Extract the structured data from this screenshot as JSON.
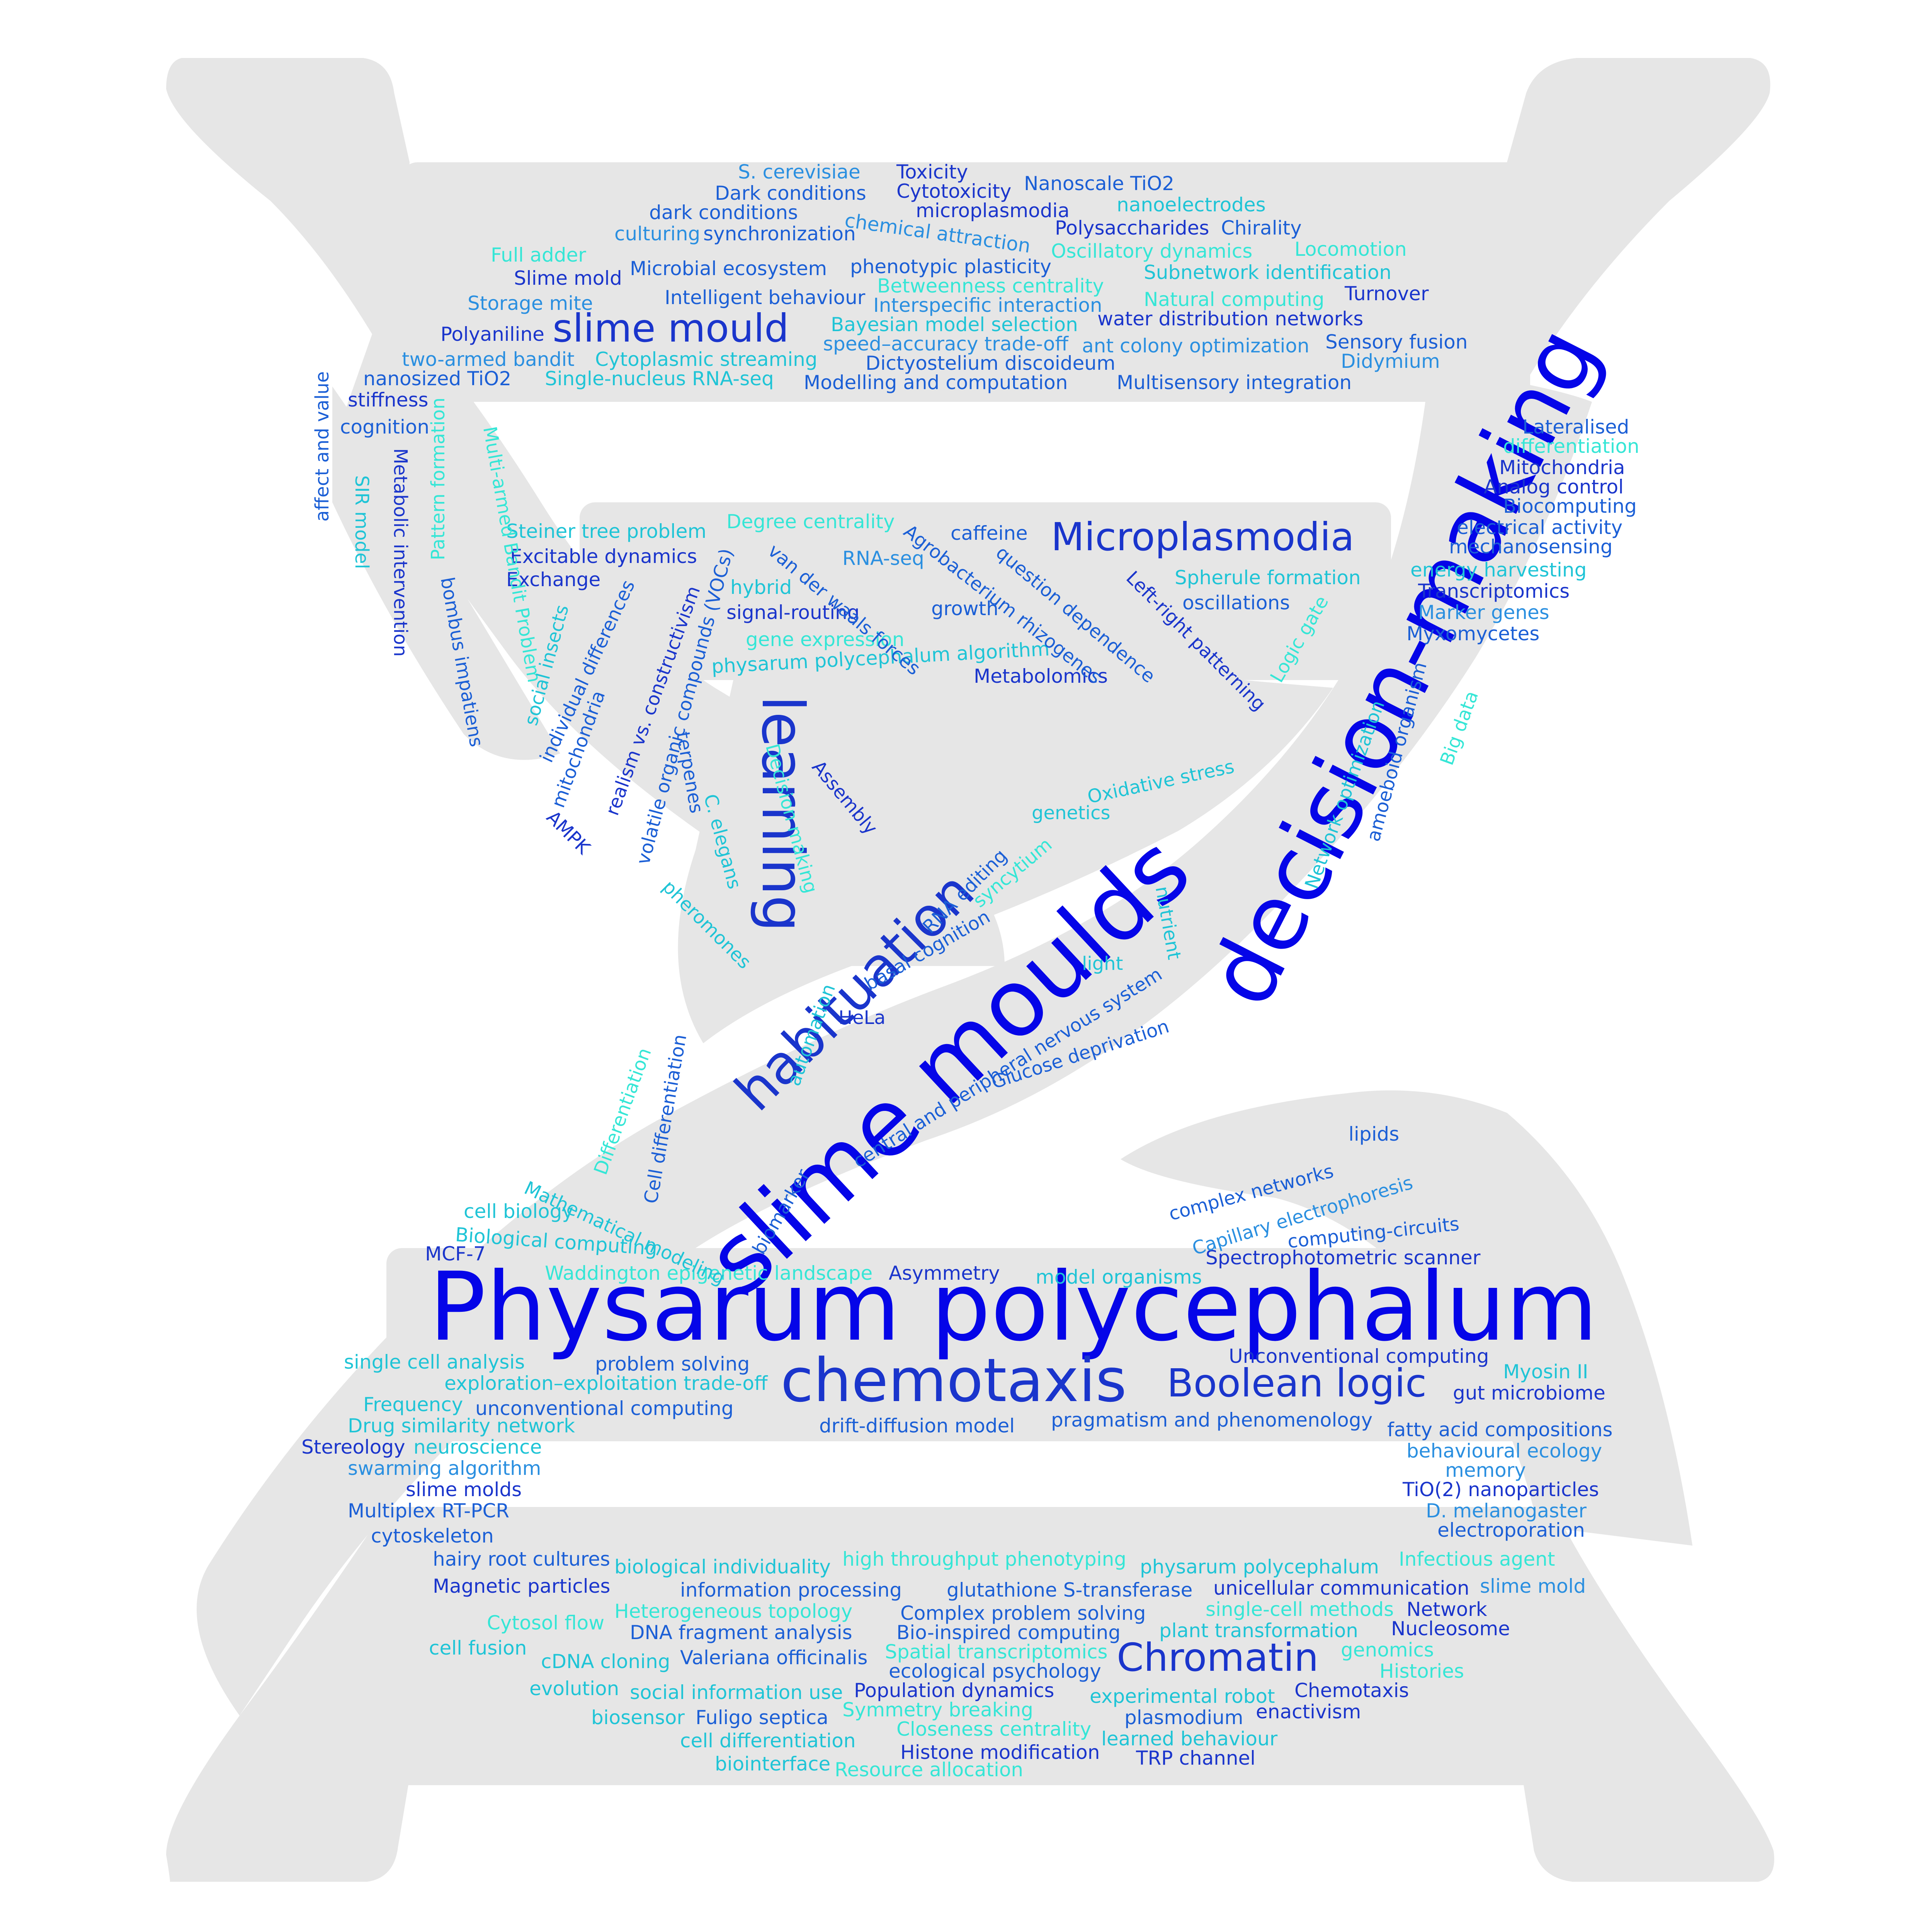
{
  "colors": {
    "background": "#ffffff",
    "helix": "#e6e6e6",
    "palette": [
      "#0505e8",
      "#1a35cc",
      "#1b5fd6",
      "#2a8fe0",
      "#1fc4d6",
      "#35e6d6"
    ]
  },
  "words": [
    {
      "t": "Physarum polycephalum",
      "c": "#0505e8"
    },
    {
      "t": "slime moulds",
      "c": "#0505e8"
    },
    {
      "t": "decision-making",
      "c": "#0505e8"
    },
    {
      "t": "chemotaxis",
      "c": "#1a35cc"
    },
    {
      "t": "learning",
      "c": "#1a35cc"
    },
    {
      "t": "habituation",
      "c": "#1a35cc"
    },
    {
      "t": "slime mould",
      "c": "#1a35cc"
    },
    {
      "t": "Microplasmodia",
      "c": "#1a35cc"
    },
    {
      "t": "Boolean logic",
      "c": "#1a35cc"
    },
    {
      "t": "Chromatin",
      "c": "#1a35cc"
    },
    {
      "t": "S. cerevisiae",
      "c": "#2a8fe0"
    },
    {
      "t": "Toxicity",
      "c": "#1a35cc"
    },
    {
      "t": "Dark conditions",
      "c": "#1b5fd6"
    },
    {
      "t": "Cytotoxicity",
      "c": "#1a35cc"
    },
    {
      "t": "Nanoscale TiO2",
      "c": "#1b5fd6"
    },
    {
      "t": "dark conditions",
      "c": "#1b5fd6"
    },
    {
      "t": "microplasmodia",
      "c": "#1a35cc"
    },
    {
      "t": "nanoelectrodes",
      "c": "#1fc4d6"
    },
    {
      "t": "culturing",
      "c": "#2a8fe0"
    },
    {
      "t": "synchronization",
      "c": "#1b5fd6"
    },
    {
      "t": "chemical attraction",
      "c": "#2a8fe0"
    },
    {
      "t": "Polysaccharides",
      "c": "#1a35cc"
    },
    {
      "t": "Chirality",
      "c": "#1b5fd6"
    },
    {
      "t": "Full adder",
      "c": "#35e6d6"
    },
    {
      "t": "Oscillatory dynamics",
      "c": "#35e6d6"
    },
    {
      "t": "Locomotion",
      "c": "#35e6d6"
    },
    {
      "t": "Slime mold",
      "c": "#1a35cc"
    },
    {
      "t": "Microbial ecosystem",
      "c": "#1b5fd6"
    },
    {
      "t": "phenotypic plasticity",
      "c": "#1b5fd6"
    },
    {
      "t": "Subnetwork identification",
      "c": "#1fc4d6"
    },
    {
      "t": "Betweenness centrality",
      "c": "#35e6d6"
    },
    {
      "t": "Storage mite",
      "c": "#2a8fe0"
    },
    {
      "t": "Intelligent behaviour",
      "c": "#1b5fd6"
    },
    {
      "t": "Interspecific interaction",
      "c": "#2a8fe0"
    },
    {
      "t": "Natural computing",
      "c": "#35e6d6"
    },
    {
      "t": "Turnover",
      "c": "#1a35cc"
    },
    {
      "t": "Bayesian model selection",
      "c": "#1fc4d6"
    },
    {
      "t": "water distribution networks",
      "c": "#1a35cc"
    },
    {
      "t": "Polyaniline",
      "c": "#1a35cc"
    },
    {
      "t": "speed–accuracy trade-off",
      "c": "#2a8fe0"
    },
    {
      "t": "ant colony optimization",
      "c": "#2a8fe0"
    },
    {
      "t": "Sensory fusion",
      "c": "#1b5fd6"
    },
    {
      "t": "two-armed bandit",
      "c": "#2a8fe0"
    },
    {
      "t": "Cytoplasmic streaming",
      "c": "#1fc4d6"
    },
    {
      "t": "Dictyostelium discoideum",
      "c": "#1b5fd6"
    },
    {
      "t": "Didymium",
      "c": "#2a8fe0"
    },
    {
      "t": "nanosized TiO2",
      "c": "#1b5fd6"
    },
    {
      "t": "Single-nucleus RNA-seq",
      "c": "#1fc4d6"
    },
    {
      "t": "Modelling and computation",
      "c": "#1b5fd6"
    },
    {
      "t": "Multisensory integration",
      "c": "#1b5fd6"
    },
    {
      "t": "stiffness",
      "c": "#1a35cc"
    },
    {
      "t": "cognition",
      "c": "#1b5fd6"
    },
    {
      "t": "Lateralised",
      "c": "#1b5fd6"
    },
    {
      "t": "differentiation",
      "c": "#35e6d6"
    },
    {
      "t": "Mitochondria",
      "c": "#1a35cc"
    },
    {
      "t": "Analog control",
      "c": "#1a35cc"
    },
    {
      "t": "Biocomputing",
      "c": "#1b5fd6"
    },
    {
      "t": "electrical activity",
      "c": "#1b5fd6"
    },
    {
      "t": "mechanosensing",
      "c": "#1b5fd6"
    },
    {
      "t": "energy harvesting",
      "c": "#1fc4d6"
    },
    {
      "t": "Transcriptomics",
      "c": "#1a35cc"
    },
    {
      "t": "Marker genes",
      "c": "#2a8fe0"
    },
    {
      "t": "Myxomycetes",
      "c": "#1b5fd6"
    },
    {
      "t": "Spherule formation",
      "c": "#1fc4d6"
    },
    {
      "t": "oscillations",
      "c": "#1b5fd6"
    },
    {
      "t": "Steiner tree problem",
      "c": "#1fc4d6"
    },
    {
      "t": "Degree centrality",
      "c": "#35e6d6"
    },
    {
      "t": "caffeine",
      "c": "#1b5fd6"
    },
    {
      "t": "Excitable dynamics",
      "c": "#1a35cc"
    },
    {
      "t": "RNA-seq",
      "c": "#2a8fe0"
    },
    {
      "t": "Exchange",
      "c": "#1a35cc"
    },
    {
      "t": "hybrid",
      "c": "#1fc4d6"
    },
    {
      "t": "signal-routing",
      "c": "#1a35cc"
    },
    {
      "t": "growth",
      "c": "#1b5fd6"
    },
    {
      "t": "gene expression",
      "c": "#35e6d6"
    },
    {
      "t": "physarum polycephalum algorithm",
      "c": "#1fc4d6"
    },
    {
      "t": "Metabolomics",
      "c": "#1a35cc"
    },
    {
      "t": "MCF-7",
      "c": "#1a35cc"
    },
    {
      "t": "cell biology",
      "c": "#1fc4d6"
    },
    {
      "t": "Biological computing",
      "c": "#1fc4d6"
    },
    {
      "t": "Waddington epigenetic landscape",
      "c": "#35e6d6"
    },
    {
      "t": "Asymmetry",
      "c": "#1a35cc"
    },
    {
      "t": "model organisms",
      "c": "#1fc4d6"
    },
    {
      "t": "Spectrophotometric scanner",
      "c": "#1a35cc"
    },
    {
      "t": "lipids",
      "c": "#1b5fd6"
    },
    {
      "t": "single cell analysis",
      "c": "#1fc4d6"
    },
    {
      "t": "problem solving",
      "c": "#1b5fd6"
    },
    {
      "t": "Unconventional computing",
      "c": "#1a35cc"
    },
    {
      "t": "exploration–exploitation trade-off",
      "c": "#1fc4d6"
    },
    {
      "t": "Myosin II",
      "c": "#1fc4d6"
    },
    {
      "t": "Frequency",
      "c": "#1fc4d6"
    },
    {
      "t": "unconventional computing",
      "c": "#1b5fd6"
    },
    {
      "t": "gut microbiome",
      "c": "#1a35cc"
    },
    {
      "t": "Drug similarity network",
      "c": "#1fc4d6"
    },
    {
      "t": "drift-diffusion model",
      "c": "#1b5fd6"
    },
    {
      "t": "pragmatism and phenomenology",
      "c": "#1b5fd6"
    },
    {
      "t": "fatty acid compositions",
      "c": "#1b5fd6"
    },
    {
      "t": "Stereology",
      "c": "#1a35cc"
    },
    {
      "t": "neuroscience",
      "c": "#1fc4d6"
    },
    {
      "t": "behavioural ecology",
      "c": "#2a8fe0"
    },
    {
      "t": "swarming algorithm",
      "c": "#2a8fe0"
    },
    {
      "t": "memory",
      "c": "#2a8fe0"
    },
    {
      "t": "slime molds",
      "c": "#1a35cc"
    },
    {
      "t": "TiO(2) nanoparticles",
      "c": "#1a35cc"
    },
    {
      "t": "Multiplex RT-PCR",
      "c": "#1b5fd6"
    },
    {
      "t": "D. melanogaster",
      "c": "#2a8fe0"
    },
    {
      "t": "electroporation",
      "c": "#1b5fd6"
    },
    {
      "t": "cytoskeleton",
      "c": "#1b5fd6"
    },
    {
      "t": "hairy root cultures",
      "c": "#1b5fd6"
    },
    {
      "t": "biological individuality",
      "c": "#1fc4d6"
    },
    {
      "t": "high throughput phenotyping",
      "c": "#35e6d6"
    },
    {
      "t": "physarum polycephalum",
      "c": "#1fc4d6"
    },
    {
      "t": "Infectious agent",
      "c": "#35e6d6"
    },
    {
      "t": "Magnetic particles",
      "c": "#1a35cc"
    },
    {
      "t": "information processing",
      "c": "#1b5fd6"
    },
    {
      "t": "glutathione S-transferase",
      "c": "#1b5fd6"
    },
    {
      "t": "unicellular communication",
      "c": "#1a35cc"
    },
    {
      "t": "slime mold",
      "c": "#2a8fe0"
    },
    {
      "t": "Heterogeneous topology",
      "c": "#35e6d6"
    },
    {
      "t": "Complex problem solving",
      "c": "#1b5fd6"
    },
    {
      "t": "single-cell methods",
      "c": "#35e6d6"
    },
    {
      "t": "Network",
      "c": "#1a35cc"
    },
    {
      "t": "Cytosol flow",
      "c": "#35e6d6"
    },
    {
      "t": "DNA fragment analysis",
      "c": "#1b5fd6"
    },
    {
      "t": "Bio-inspired computing",
      "c": "#1b5fd6"
    },
    {
      "t": "plant transformation",
      "c": "#1fc4d6"
    },
    {
      "t": "Nucleosome",
      "c": "#1a35cc"
    },
    {
      "t": "cell fusion",
      "c": "#1fc4d6"
    },
    {
      "t": "cDNA cloning",
      "c": "#1fc4d6"
    },
    {
      "t": "Valeriana officinalis",
      "c": "#1b5fd6"
    },
    {
      "t": "Spatial transcriptomics",
      "c": "#35e6d6"
    },
    {
      "t": "genomics",
      "c": "#35e6d6"
    },
    {
      "t": "ecological psychology",
      "c": "#1b5fd6"
    },
    {
      "t": "Histories",
      "c": "#35e6d6"
    },
    {
      "t": "evolution",
      "c": "#1fc4d6"
    },
    {
      "t": "social information use",
      "c": "#1fc4d6"
    },
    {
      "t": "Population dynamics",
      "c": "#1a35cc"
    },
    {
      "t": "experimental robot",
      "c": "#1fc4d6"
    },
    {
      "t": "Chemotaxis",
      "c": "#1a35cc"
    },
    {
      "t": "biosensor",
      "c": "#1fc4d6"
    },
    {
      "t": "Fuligo septica",
      "c": "#1b5fd6"
    },
    {
      "t": "Symmetry breaking",
      "c": "#35e6d6"
    },
    {
      "t": "plasmodium",
      "c": "#1b5fd6"
    },
    {
      "t": "enactivism",
      "c": "#1a35cc"
    },
    {
      "t": "Closeness centrality",
      "c": "#35e6d6"
    },
    {
      "t": "learned behaviour",
      "c": "#1fc4d6"
    },
    {
      "t": "cell differentiation",
      "c": "#1fc4d6"
    },
    {
      "t": "Histone modification",
      "c": "#1a35cc"
    },
    {
      "t": "TRP channel",
      "c": "#1a35cc"
    },
    {
      "t": "biointerface",
      "c": "#1fc4d6"
    },
    {
      "t": "Resource allocation",
      "c": "#35e6d6"
    },
    {
      "t": "affect and value",
      "c": "#1b5fd6"
    },
    {
      "t": "SIR model",
      "c": "#1fc4d6"
    },
    {
      "t": "Metabolic intervention",
      "c": "#1a35cc"
    },
    {
      "t": "Pattern formation",
      "c": "#35e6d6"
    },
    {
      "t": "Multi-armed Bandit Problem",
      "c": "#35e6d6"
    },
    {
      "t": "bombus impatiens",
      "c": "#1b5fd6"
    },
    {
      "t": "social insects",
      "c": "#1fc4d6"
    },
    {
      "t": "individual differences",
      "c": "#1b5fd6"
    },
    {
      "t": "mitochondria",
      "c": "#1b5fd6"
    },
    {
      "t": "realism vs. constructivism",
      "c": "#1a35cc"
    },
    {
      "t": "AMPK",
      "c": "#1a35cc"
    },
    {
      "t": "volatile organic compounds (VOCs)",
      "c": "#1b5fd6"
    },
    {
      "t": "terpenes",
      "c": "#1b5fd6"
    },
    {
      "t": "C. elegans",
      "c": "#1fc4d6"
    },
    {
      "t": "Decision making",
      "c": "#35e6d6"
    },
    {
      "t": "pheromones",
      "c": "#1fc4d6"
    },
    {
      "t": "Assembly",
      "c": "#1a35cc"
    },
    {
      "t": "van der waals forces",
      "c": "#1b5fd6"
    },
    {
      "t": "Agrobacterium rhizogenes",
      "c": "#1b5fd6"
    },
    {
      "t": "question dependence",
      "c": "#1b5fd6"
    },
    {
      "t": "Left-right patterning",
      "c": "#1a35cc"
    },
    {
      "t": "Logic gate",
      "c": "#35e6d6"
    },
    {
      "t": "amoeboid organism",
      "c": "#1b5fd6"
    },
    {
      "t": "Big data",
      "c": "#35e6d6"
    },
    {
      "t": "Network optimization",
      "c": "#1fc4d6"
    },
    {
      "t": "Oxidative stress",
      "c": "#1fc4d6"
    },
    {
      "t": "genetics",
      "c": "#1fc4d6"
    },
    {
      "t": "syncytium",
      "c": "#35e6d6"
    },
    {
      "t": "RNA editing",
      "c": "#1b5fd6"
    },
    {
      "t": "basal cognition",
      "c": "#1b5fd6"
    },
    {
      "t": "nutrient",
      "c": "#1fc4d6"
    },
    {
      "t": "light",
      "c": "#1fc4d6"
    },
    {
      "t": "central and peripheral nervous system",
      "c": "#1b5fd6"
    },
    {
      "t": "Glucose deprivation",
      "c": "#1b5fd6"
    },
    {
      "t": "HeLa",
      "c": "#1a35cc"
    },
    {
      "t": "automation",
      "c": "#1fc4d6"
    },
    {
      "t": "Differentiation",
      "c": "#35e6d6"
    },
    {
      "t": "Cell differentiation",
      "c": "#1b5fd6"
    },
    {
      "t": "Mathematical modeling",
      "c": "#1fc4d6"
    },
    {
      "t": "biomarker",
      "c": "#1b5fd6"
    },
    {
      "t": "complex networks",
      "c": "#1b5fd6"
    },
    {
      "t": "Capillary electrophoresis",
      "c": "#2a8fe0"
    },
    {
      "t": "computing-circuits",
      "c": "#1b5fd6"
    }
  ]
}
